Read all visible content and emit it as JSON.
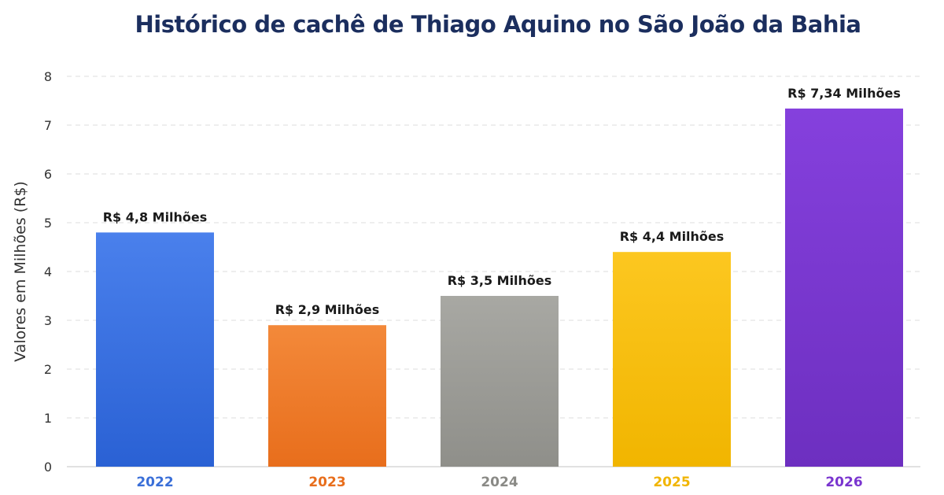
{
  "chart_data": {
    "type": "bar",
    "title": "Histórico de cachê de Thiago Aquino no São João da Bahia",
    "ylabel": "Valores em Milhões (R$)",
    "xlabel": "",
    "categories": [
      "2022",
      "2023",
      "2024",
      "2025",
      "2026"
    ],
    "values": [
      4.8,
      2.9,
      3.5,
      4.4,
      7.34
    ],
    "data_labels": [
      "R$ 4,8 Milhões",
      "R$ 2,9 Milhões",
      "R$ 3,5 Milhões",
      "R$ 4,4 Milhões",
      "R$ 7,34 Milhões"
    ],
    "ylim": [
      0,
      8
    ],
    "yticks": [
      "0",
      "1",
      "2",
      "3",
      "4",
      "5",
      "6",
      "7",
      "8"
    ],
    "grid": true,
    "legend": "none",
    "bar_colors": [
      [
        "#4a80ec",
        "#2a61d4"
      ],
      [
        "#f3893a",
        "#e86e1c"
      ],
      [
        "#a8a8a3",
        "#8f8f8a"
      ],
      [
        "#fcc720",
        "#f1b500"
      ],
      [
        "#8540dd",
        "#6d2fc0"
      ]
    ],
    "tick_label_colors": [
      "#3a6fd8",
      "#e86e1c",
      "#8a8a86",
      "#f1b500",
      "#7a35cf"
    ]
  }
}
